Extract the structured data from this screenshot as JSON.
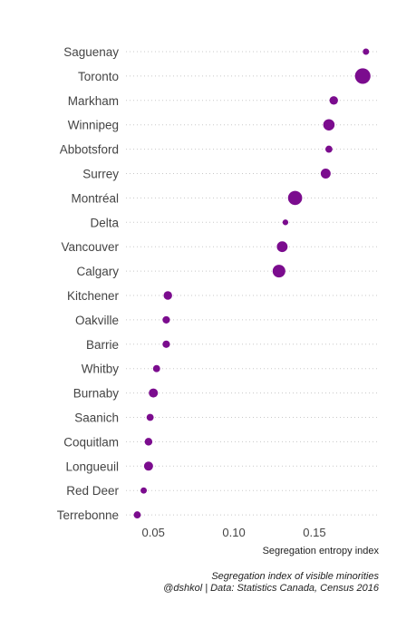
{
  "chart_data": {
    "type": "scatter",
    "title": "",
    "xlabel": "Segregation entropy index",
    "ylabel": "",
    "xlim": [
      0.033,
      0.19
    ],
    "x_ticks": [
      0.05,
      0.1,
      0.15
    ],
    "x_tick_labels": [
      "0.05",
      "0.10",
      "0.15"
    ],
    "grid": "horizontal dotted lines",
    "point_color": "#7B0C8E",
    "categories": [
      "Saguenay",
      "Toronto",
      "Markham",
      "Winnipeg",
      "Abbotsford",
      "Surrey",
      "Montréal",
      "Delta",
      "Vancouver",
      "Calgary",
      "Kitchener",
      "Oakville",
      "Barrie",
      "Whitby",
      "Burnaby",
      "Saanich",
      "Coquitlam",
      "Longueuil",
      "Red Deer",
      "Terrebonne"
    ],
    "values": [
      0.182,
      0.18,
      0.162,
      0.159,
      0.159,
      0.157,
      0.138,
      0.132,
      0.13,
      0.128,
      0.059,
      0.058,
      0.058,
      0.052,
      0.05,
      0.048,
      0.047,
      0.047,
      0.044,
      0.04
    ],
    "point_size": [
      1.2,
      4.5,
      2.0,
      3.0,
      1.5,
      2.5,
      4.0,
      1.0,
      2.8,
      3.5,
      2.0,
      1.6,
      1.6,
      1.5,
      2.2,
      1.5,
      1.7,
      2.2,
      1.2,
      1.5
    ],
    "caption": [
      "Segregation index of visible minorities",
      "@dshkol | Data: Statistics Canada, Census 2016"
    ]
  }
}
